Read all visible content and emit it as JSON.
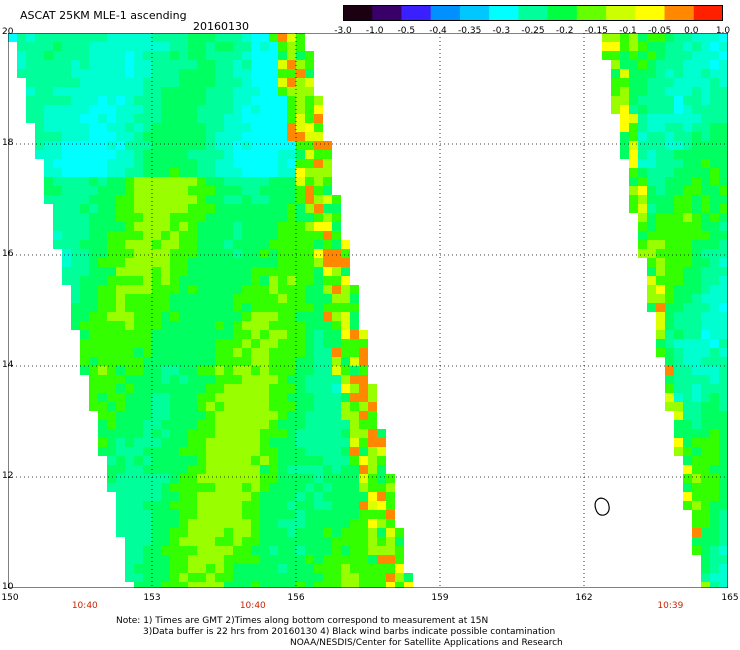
{
  "header": {
    "title": "ASCAT 25KM MLE-1 ascending",
    "date": "20160130"
  },
  "colorbar": {
    "labels": [
      "-3.0",
      "-1.0",
      "-0.5",
      "-0.4",
      "-0.35",
      "-0.3",
      "-0.25",
      "-0.2",
      "-0.15",
      "-0.1",
      "-0.05",
      "0.0",
      "1.0"
    ],
    "colors": [
      "#1a0010",
      "#3a006a",
      "#3a20ff",
      "#0090ff",
      "#00c8ff",
      "#00ffff",
      "#00ff9a",
      "#00ff40",
      "#66ff00",
      "#ccff00",
      "#ffff00",
      "#ff8800",
      "#ff2000"
    ]
  },
  "map": {
    "lat_labels": [
      "20",
      "18",
      "16",
      "14",
      "12",
      "10"
    ],
    "lat_values": [
      20,
      18,
      16,
      14,
      12,
      10
    ],
    "lon_labels": [
      "150",
      "153",
      "156",
      "159",
      "162",
      "165"
    ],
    "lon_values": [
      150,
      153,
      156,
      159,
      162,
      165
    ],
    "time_labels": [
      {
        "lon": 151.6,
        "text": "10:40"
      },
      {
        "lon": 155.1,
        "text": "10:40"
      },
      {
        "lon": 163.8,
        "text": "10:39"
      }
    ]
  },
  "notes": {
    "line1": "Note: 1) Times are GMT 2)Times along bottom correspond to measurement at 15N",
    "line2": "3)Data buffer is 22 hrs from 20160130 4) Black wind barbs indicate possible contamination",
    "line3": "NOAA/NESDIS/Center for Satellite Applications and Research"
  }
}
